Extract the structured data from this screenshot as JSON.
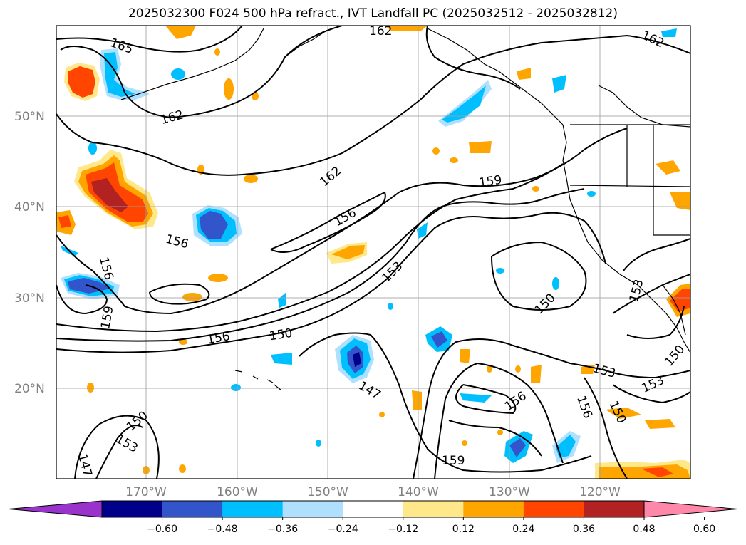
{
  "title": "2025032300 F024 500 hPa refract., IVT Landfall PC (2025032512 - 2025032812)",
  "lat_labels": [
    "50°N",
    "40°N",
    "30°N",
    "20°N"
  ],
  "lon_labels": [
    "170°W",
    "160°W",
    "150°W",
    "140°W",
    "130°W",
    "120°W"
  ],
  "contour_labels": [
    "165",
    "162",
    "162",
    "162",
    "162",
    "159",
    "159",
    "159",
    "156",
    "156",
    "156",
    "156",
    "156",
    "156",
    "153",
    "153",
    "153",
    "153",
    "153",
    "150",
    "150",
    "150",
    "150",
    "150",
    "147",
    "147"
  ],
  "colorbar": {
    "ticks": [
      "−0.60",
      "−0.48",
      "−0.36",
      "−0.24",
      "−0.12",
      "0.12",
      "0.24",
      "0.36",
      "0.48",
      "0.60"
    ],
    "colors": [
      "#9933cc",
      "#00008b",
      "#3355cc",
      "#00bfff",
      "#b0e0ff",
      "#ffffff",
      "#ffe88a",
      "#ffa500",
      "#ff4500",
      "#b22222",
      "#ff88aa"
    ]
  }
}
